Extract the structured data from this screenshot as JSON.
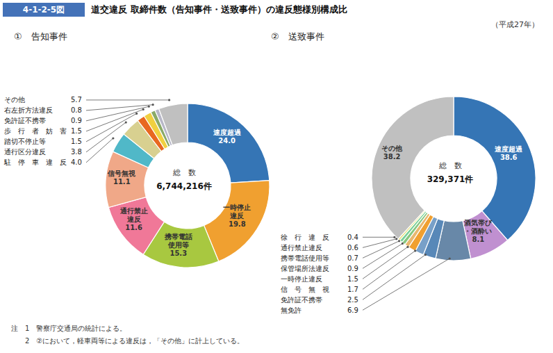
{
  "title": "道交違反 取締件数（告知事件・送致事件）の違反態様別構成比",
  "subtitle": "（平成27年）",
  "color": "#4472b8",
  "annotations": [
    "4-1-2-5図",
    "注　1　警察庁交通局の統計による。",
    "　　2　②において，軽車両等による違反は，「その他」に計上している。"
  ],
  "chart_data": [
    {
      "type": "pie",
      "title": "①　告知事件",
      "annotations": [
        "総　数",
        "6,744,216件"
      ],
      "categories": [
        "速度超過",
        "一時停止\n違反",
        "携帯電話\n使用等",
        "通行禁止\n違反",
        "信号無視",
        "駐　停　車　違　反",
        "通行区分違反",
        "踏切不停止等",
        "歩　行　者　妨　害",
        "免許証不携帯",
        "右左折方法違反",
        "その他"
      ],
      "values": [
        24.0,
        19.8,
        15.3,
        11.6,
        11.1,
        4.0,
        3.8,
        1.5,
        1.5,
        0.9,
        0.8,
        5.7
      ],
      "value_labels": [
        "24.0",
        "19.8",
        "15.3",
        "11.6",
        "11.1",
        "4.0",
        "3.8",
        "1.5",
        "1.5",
        "0.9",
        "0.8",
        "5.7"
      ],
      "colors": [
        "#3575b5",
        "#f0a030",
        "#a8c840",
        "#f07898",
        "#f0a888",
        "#50b8c8",
        "#d8d090",
        "#e86820",
        "#f0d040",
        "#8aaa68",
        "#b8b8c8",
        "#c0c0c0"
      ],
      "data_labels": true
    },
    {
      "type": "pie",
      "title": "②　送致事件",
      "annotations": [
        "総　数",
        "329,371件"
      ],
      "categories": [
        "速度超過",
        "酒気帯び\n・酒酔い",
        "無免許",
        "免許証不携帯",
        "信　号　無　視",
        "一時停止違反",
        "保管場所法違反",
        "携帯電話使用等",
        "通行禁止違反",
        "徐　行　違　反",
        "その他"
      ],
      "values": [
        38.6,
        8.1,
        6.9,
        2.5,
        1.7,
        1.5,
        0.9,
        0.7,
        0.6,
        0.4,
        38.2
      ],
      "value_labels": [
        "38.6",
        "8.1",
        "6.9",
        "2.5",
        "1.7",
        "1.5",
        "0.9",
        "0.7",
        "0.6",
        "0.4",
        "38.2"
      ],
      "colors": [
        "#3575b5",
        "#c090d0",
        "#6888a8",
        "#5888b8",
        "#78a0c8",
        "#f0a030",
        "#e8b870",
        "#88c880",
        "#78d098",
        "#e8e080",
        "#c0c0c0"
      ],
      "data_labels": true
    }
  ]
}
